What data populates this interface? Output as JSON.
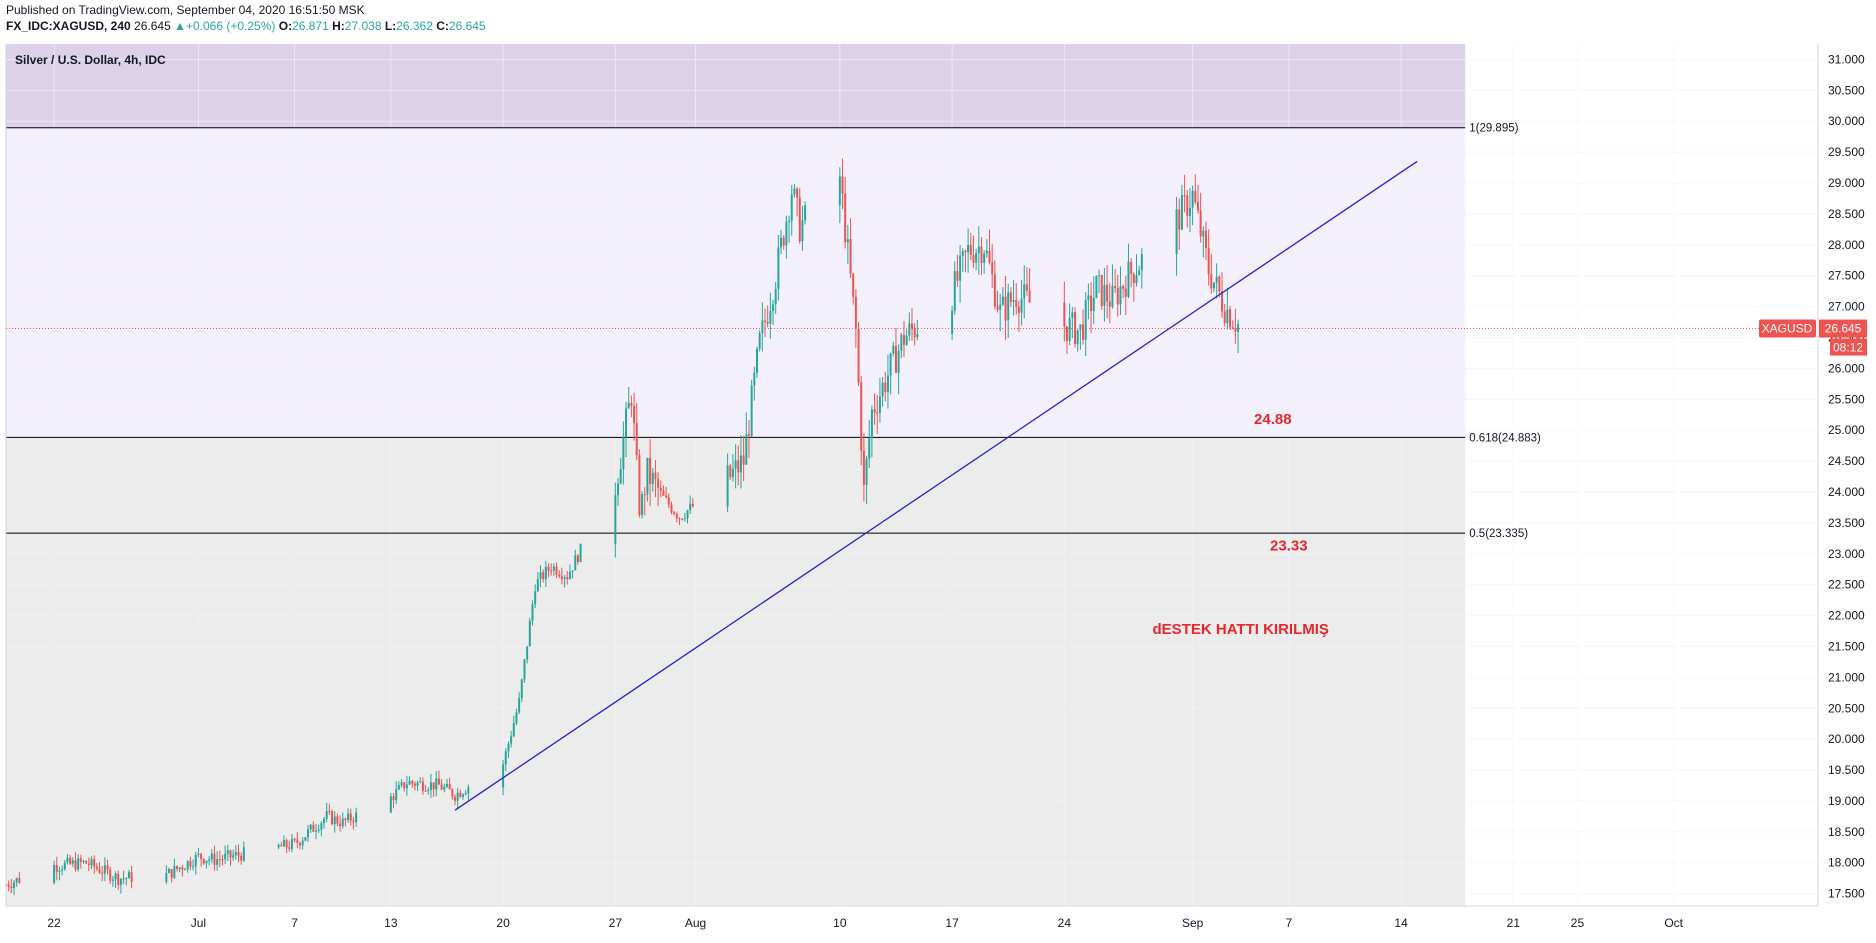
{
  "header": {
    "published": "Published on TradingView.com, September 04, 2020 16:51:50 MSK",
    "symbol": "FX_IDC:XAGUSD, 240",
    "last": "26.645",
    "change": "+0.066 (+0.25%)",
    "o_label": "O:",
    "o_value": "26.871",
    "h_label": "H:",
    "h_value": "27.038",
    "l_label": "L:",
    "l_value": "26.362",
    "c_label": "C:",
    "c_value": "26.645"
  },
  "colors": {
    "up": "#26a69a",
    "down": "#ef5350",
    "trendline": "#2323c8",
    "annotation": "#e8272c",
    "zone_top": "#dcd1e8",
    "zone_mid": "#f3f0fb",
    "zone_bottom": "#ececec",
    "price_tag": "#ef5350"
  },
  "chart_data": {
    "type": "candlestick",
    "legend": "Silver / U.S. Dollar, 4h, IDC",
    "x_ticks": [
      "22",
      "Jul",
      "7",
      "13",
      "20",
      "27",
      "Aug",
      "10",
      "17",
      "24",
      "Sep",
      "7",
      "14",
      "21",
      "25",
      "Oct"
    ],
    "x_ticks_dates": [
      "2020-06-22",
      "2020-07-01",
      "2020-07-07",
      "2020-07-13",
      "2020-07-20",
      "2020-07-27",
      "2020-08-01",
      "2020-08-10",
      "2020-08-17",
      "2020-08-24",
      "2020-09-01",
      "2020-09-07",
      "2020-09-14",
      "2020-09-21",
      "2020-09-25",
      "2020-10-01"
    ],
    "y_ticks": [
      "31.000",
      "30.500",
      "30.000",
      "29.500",
      "29.000",
      "28.500",
      "28.000",
      "27.500",
      "27.000",
      "26.500",
      "26.000",
      "25.500",
      "25.000",
      "24.500",
      "24.000",
      "23.500",
      "23.000",
      "22.500",
      "22.000",
      "21.500",
      "21.000",
      "20.500",
      "20.000",
      "19.500",
      "19.000",
      "18.500",
      "18.000",
      "17.500"
    ],
    "ylim": [
      17.3,
      31.25
    ],
    "xlim": [
      "2020-06-19",
      "2020-10-10"
    ],
    "fib_levels": [
      {
        "label": "1(29.895)",
        "value": 29.895
      },
      {
        "label": "0.618(24.883)",
        "value": 24.883
      },
      {
        "label": "0.5(23.335)",
        "value": 23.335
      }
    ],
    "fib_end_date": "2020-09-18",
    "trendline": {
      "from": {
        "date": "2020-07-17",
        "price": 18.85
      },
      "to": {
        "date": "2020-09-15",
        "price": 29.35
      }
    },
    "annotations": [
      {
        "text": "24.88",
        "date": "2020-09-06",
        "price": 25.1
      },
      {
        "text": "23.33",
        "date": "2020-09-07",
        "price": 23.05
      },
      {
        "text": "dESTEK HATTI KIRILMIŞ",
        "date": "2020-09-04",
        "price": 21.7
      }
    ],
    "current_price": {
      "symbol": "XAGUSD",
      "value": "26.645",
      "countdown": "08:12",
      "price": 26.645
    },
    "price_path": [
      [
        "2020-06-19",
        17.65
      ],
      [
        "2020-06-22",
        17.95
      ],
      [
        "2020-06-24",
        18.0
      ],
      [
        "2020-06-26",
        17.75
      ],
      [
        "2020-06-29",
        17.8
      ],
      [
        "2020-07-01",
        18.1
      ],
      [
        "2020-07-02",
        18.05
      ],
      [
        "2020-07-06",
        18.25
      ],
      [
        "2020-07-07",
        18.3
      ],
      [
        "2020-07-09",
        18.75
      ],
      [
        "2020-07-10",
        18.65
      ],
      [
        "2020-07-13",
        19.05
      ],
      [
        "2020-07-14",
        19.3
      ],
      [
        "2020-07-16",
        19.25
      ],
      [
        "2020-07-17",
        19.1
      ],
      [
        "2020-07-20",
        19.6
      ],
      [
        "2020-07-21",
        20.6
      ],
      [
        "2020-07-22",
        22.5
      ],
      [
        "2020-07-23",
        22.8
      ],
      [
        "2020-07-24",
        22.65
      ],
      [
        "2020-07-27",
        24.1
      ],
      [
        "2020-07-28",
        25.6
      ],
      [
        "2020-07-28T12",
        23.7
      ],
      [
        "2020-07-29",
        24.3
      ],
      [
        "2020-07-30",
        23.9
      ],
      [
        "2020-07-31",
        23.6
      ],
      [
        "2020-08-03",
        24.2
      ],
      [
        "2020-08-04",
        24.5
      ],
      [
        "2020-08-05",
        26.4
      ],
      [
        "2020-08-06",
        27.5
      ],
      [
        "2020-08-07",
        28.9
      ],
      [
        "2020-08-07T12",
        28.3
      ],
      [
        "2020-08-10",
        29.1
      ],
      [
        "2020-08-11",
        26.6
      ],
      [
        "2020-08-11T12",
        24.0
      ],
      [
        "2020-08-12",
        25.3
      ],
      [
        "2020-08-13",
        25.9
      ],
      [
        "2020-08-14",
        26.5
      ],
      [
        "2020-08-17",
        27.2
      ],
      [
        "2020-08-18",
        27.9
      ],
      [
        "2020-08-19",
        28.0
      ],
      [
        "2020-08-20",
        26.9
      ],
      [
        "2020-08-21",
        27.2
      ],
      [
        "2020-08-24",
        26.7
      ],
      [
        "2020-08-25",
        26.6
      ],
      [
        "2020-08-26",
        27.3
      ],
      [
        "2020-08-27",
        27.1
      ],
      [
        "2020-08-28",
        27.5
      ],
      [
        "2020-08-31",
        28.4
      ],
      [
        "2020-09-01",
        28.8
      ],
      [
        "2020-09-02",
        27.6
      ],
      [
        "2020-09-03",
        27.0
      ],
      [
        "2020-09-04",
        26.65
      ]
    ]
  }
}
